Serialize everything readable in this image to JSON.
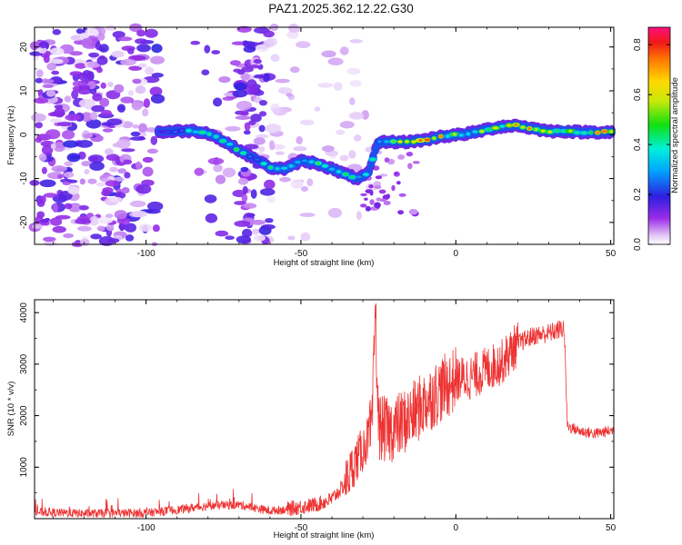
{
  "title": "PAZ1.2025.362.12.22.G30",
  "chart_data": [
    {
      "type": "heatmap",
      "title": "PAZ1.2025.362.12.22.G30",
      "xlabel": "Height of straight line (km)",
      "ylabel": "Frequency (Hz)",
      "xlim": [
        -136,
        51
      ],
      "ylim": [
        -25,
        24.5
      ],
      "xticks": [
        "-100",
        "-50",
        "0",
        "50"
      ],
      "yticks": [
        "20",
        "10",
        "0",
        "-10",
        "-20"
      ],
      "colorbar": {
        "label": "Normalized spectral amplitude",
        "range": [
          0,
          0.87
        ],
        "ticks": [
          "0.0",
          "0.2",
          "0.4",
          "0.6",
          "0.8"
        ]
      },
      "signal_track": {
        "x": [
          -96,
          -90,
          -85,
          -80,
          -75,
          -70,
          -65,
          -60,
          -55,
          -50,
          -45,
          -40,
          -35,
          -32,
          -30,
          -28,
          -26,
          -25,
          -22,
          -18,
          -15,
          -10,
          -5,
          0,
          5,
          10,
          15,
          20,
          25,
          30,
          35,
          40,
          45,
          51
        ],
        "freq": [
          0.6,
          0.8,
          0.9,
          0.4,
          -1.5,
          -3.5,
          -5.5,
          -7.5,
          -7.8,
          -6.0,
          -6.5,
          -7.8,
          -9.2,
          -10.0,
          -9.5,
          -8.5,
          -3.5,
          -1.8,
          -1.6,
          -1.7,
          -1.6,
          -1.2,
          -0.4,
          -0.1,
          0.4,
          1.2,
          1.9,
          2.1,
          1.4,
          0.8,
          0.8,
          0.6,
          0.6,
          0.6
        ],
        "amplitude": [
          0.2,
          0.35,
          0.45,
          0.5,
          0.55,
          0.45,
          0.4,
          0.5,
          0.45,
          0.4,
          0.5,
          0.45,
          0.55,
          0.5,
          0.45,
          0.5,
          0.5,
          0.55,
          0.45,
          0.6,
          0.7,
          0.8,
          0.72,
          0.6,
          0.55,
          0.62,
          0.65,
          0.78,
          0.7,
          0.75,
          0.7,
          0.7,
          0.75,
          0.8
        ]
      }
    },
    {
      "type": "line",
      "xlabel": "Height of straight line (km)",
      "ylabel": "SNR (10 * v/v)",
      "xlim": [
        -136,
        51
      ],
      "ylim": [
        0,
        4250
      ],
      "xticks": [
        "-100",
        "-50",
        "0",
        "50"
      ],
      "yticks": [
        "4000",
        "3000",
        "2000",
        "1000"
      ],
      "color": "#ee3333",
      "series": [
        {
          "name": "SNR",
          "x": [
            -136,
            -120,
            -100,
            -90,
            -80,
            -70,
            -60,
            -55,
            -50,
            -45,
            -40,
            -36,
            -33,
            -30,
            -27,
            -26,
            -25,
            -22,
            -20,
            -15,
            -10,
            -5,
            0,
            5,
            10,
            15,
            20,
            25,
            30,
            35,
            36,
            40,
            45,
            51
          ],
          "y": [
            130,
            100,
            110,
            170,
            250,
            270,
            150,
            180,
            230,
            270,
            380,
            650,
            1050,
            1350,
            1750,
            4150,
            1800,
            1700,
            1750,
            1950,
            2250,
            2500,
            2700,
            2750,
            2900,
            3050,
            3400,
            3550,
            3600,
            3700,
            1800,
            1700,
            1650,
            1720
          ]
        }
      ]
    }
  ]
}
